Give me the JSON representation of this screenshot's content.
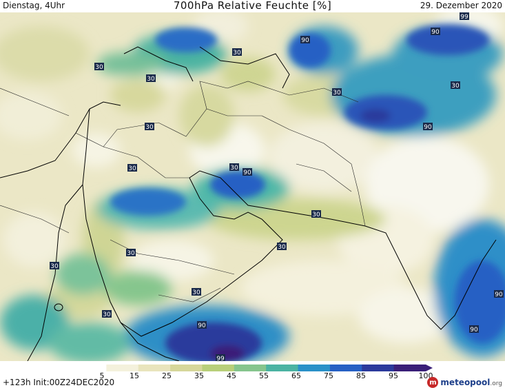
{
  "header": {
    "left": "Dienstag, 4Uhr",
    "center": "700hPa Relative Feuchte [%]",
    "right": "29. Dezember 2020"
  },
  "footer": {
    "left": "+123h Init:00Z24DEC2020",
    "logo": "meteopool",
    "logo_suffix": ".org"
  },
  "colorbar": {
    "ticks": [
      "5",
      "15",
      "25",
      "35",
      "45",
      "55",
      "65",
      "75",
      "85",
      "95",
      "100"
    ],
    "colors": [
      "#ffffff",
      "#f4f1dc",
      "#e9e4bd",
      "#d6d79a",
      "#b8cf7a",
      "#86c58d",
      "#4bb3a2",
      "#2a91c8",
      "#2660c4",
      "#2b3a9c",
      "#3a1f78"
    ]
  },
  "isolines": {
    "labels": [
      "30",
      "30",
      "30",
      "30",
      "30",
      "30",
      "30",
      "30",
      "30",
      "30",
      "30",
      "30",
      "30",
      "30",
      "90",
      "90",
      "90",
      "90",
      "90",
      "90",
      "90",
      "99",
      "99"
    ]
  }
}
